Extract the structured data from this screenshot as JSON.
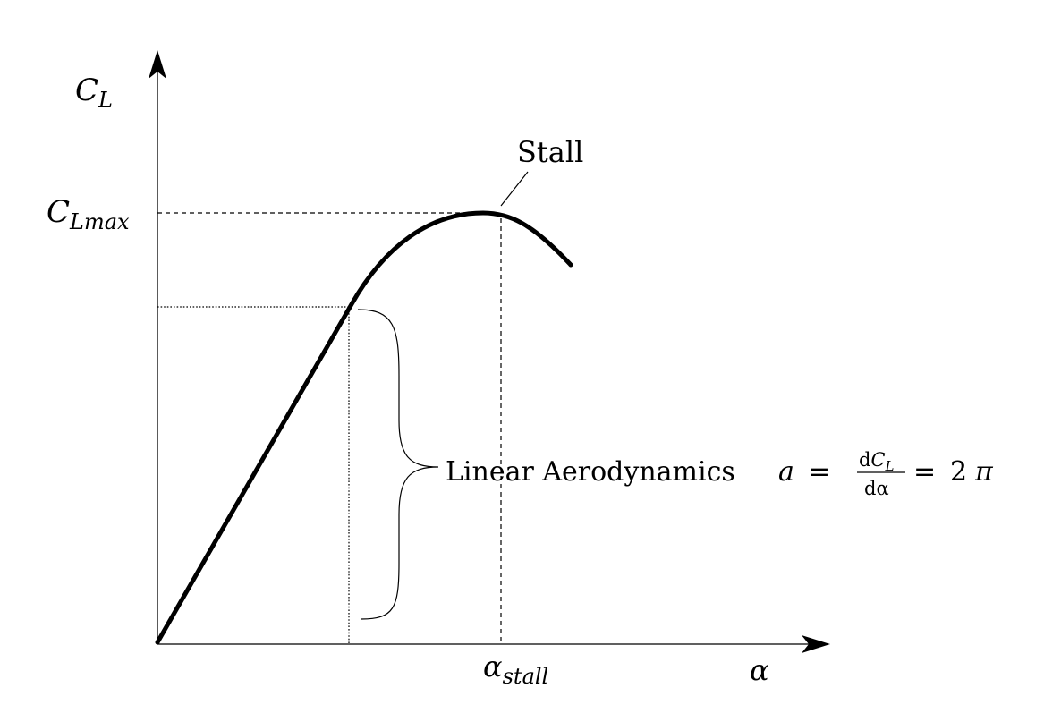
{
  "diagram": {
    "y_axis": {
      "symbol": "C",
      "subscript": "L"
    },
    "x_axis": {
      "symbol": "α"
    },
    "clmax_label": {
      "symbol": "C",
      "subscript": "Lmax"
    },
    "alpha_stall_label": {
      "symbol": "α",
      "subscript": "stall"
    },
    "stall_annotation": "Stall",
    "linear_annotation": {
      "text": "Linear Aerodynamics",
      "var": "a",
      "eq": "=",
      "numerator_d": "d",
      "numerator_symbol": "C",
      "numerator_sub": "L",
      "denominator": "dα",
      "eq2": "=",
      "value": "2",
      "pi": "π"
    }
  }
}
